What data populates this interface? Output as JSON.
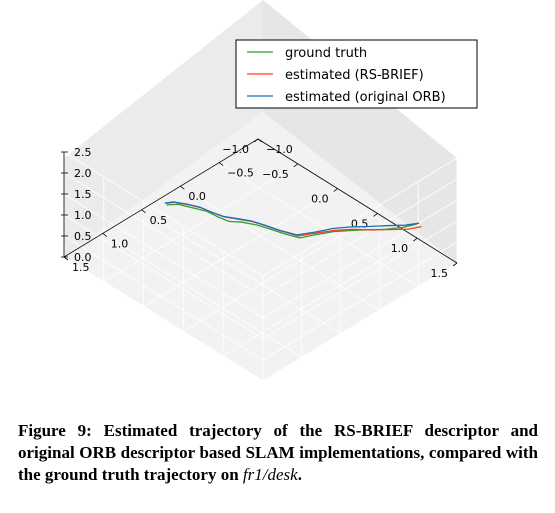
{
  "chart_data": {
    "type": "line",
    "projection": "3d",
    "title": "",
    "xlabel": "",
    "ylabel": "",
    "zlabel": "",
    "grid": true,
    "legend_placement": "top-right",
    "axes": {
      "x": {
        "range": [
          -1.0,
          1.5
        ],
        "ticks": [
          "−1.0",
          "−0.5",
          "0.0",
          "0.5",
          "1.0",
          "1.5"
        ]
      },
      "y": {
        "range": [
          -1.0,
          1.5
        ],
        "ticks": [
          "−1.0",
          "−0.5",
          "0.0",
          "0.5",
          "1.0",
          "1.5"
        ]
      },
      "z": {
        "range": [
          0.0,
          2.5
        ],
        "ticks": [
          "0.0",
          "0.5",
          "1.0",
          "1.5",
          "2.0",
          "2.5"
        ]
      }
    },
    "series": [
      {
        "name": "ground truth",
        "color": "#2ca02c",
        "points": [
          [
            -0.21,
            0.99,
            1.6
          ],
          [
            -0.12,
            0.93,
            1.65
          ],
          [
            0.0,
            0.88,
            1.66
          ],
          [
            0.13,
            0.82,
            1.66
          ],
          [
            0.26,
            0.81,
            1.67
          ],
          [
            0.38,
            0.79,
            1.68
          ],
          [
            0.48,
            0.72,
            1.7
          ],
          [
            0.6,
            0.66,
            1.71
          ],
          [
            0.71,
            0.61,
            1.69
          ],
          [
            0.85,
            0.56,
            1.68
          ],
          [
            0.99,
            0.5,
            1.68
          ],
          [
            1.07,
            0.37,
            1.71
          ],
          [
            1.16,
            0.24,
            1.74
          ],
          [
            1.26,
            0.12,
            1.75
          ],
          [
            1.36,
            -0.01,
            1.74
          ],
          [
            1.45,
            -0.13,
            1.72
          ],
          [
            1.52,
            -0.28,
            1.68
          ],
          [
            1.56,
            -0.42,
            1.65
          ]
        ]
      },
      {
        "name": "estimated (RS-BRIEF)",
        "color": "#ff3b1f",
        "points": [
          [
            -0.23,
            0.98,
            1.6
          ],
          [
            -0.17,
            0.93,
            1.64
          ],
          [
            -0.06,
            0.87,
            1.65
          ],
          [
            0.06,
            0.82,
            1.66
          ],
          [
            0.17,
            0.8,
            1.66
          ],
          [
            0.3,
            0.77,
            1.67
          ],
          [
            0.42,
            0.71,
            1.69
          ],
          [
            0.53,
            0.65,
            1.7
          ],
          [
            0.64,
            0.6,
            1.68
          ],
          [
            0.79,
            0.55,
            1.67
          ],
          [
            0.95,
            0.48,
            1.66
          ],
          [
            1.05,
            0.34,
            1.69
          ],
          [
            1.14,
            0.21,
            1.71
          ],
          [
            1.25,
            0.08,
            1.72
          ],
          [
            1.36,
            -0.04,
            1.7
          ],
          [
            1.46,
            -0.17,
            1.68
          ],
          [
            1.55,
            -0.32,
            1.63
          ],
          [
            1.59,
            -0.45,
            1.59
          ]
        ]
      },
      {
        "name": "estimated (original ORB)",
        "color": "#1f6fb4",
        "points": [
          [
            -0.24,
            0.98,
            1.6
          ],
          [
            -0.18,
            0.93,
            1.64
          ],
          [
            -0.07,
            0.87,
            1.65
          ],
          [
            0.05,
            0.82,
            1.66
          ],
          [
            0.16,
            0.8,
            1.66
          ],
          [
            0.29,
            0.77,
            1.67
          ],
          [
            0.41,
            0.71,
            1.69
          ],
          [
            0.52,
            0.65,
            1.7
          ],
          [
            0.63,
            0.6,
            1.68
          ],
          [
            0.78,
            0.55,
            1.67
          ],
          [
            0.93,
            0.48,
            1.66
          ],
          [
            1.03,
            0.34,
            1.69
          ],
          [
            1.11,
            0.2,
            1.71
          ],
          [
            1.21,
            0.07,
            1.72
          ],
          [
            1.31,
            -0.06,
            1.7
          ],
          [
            1.4,
            -0.19,
            1.68
          ],
          [
            1.49,
            -0.34,
            1.63
          ],
          [
            1.54,
            -0.47,
            1.59
          ]
        ]
      }
    ]
  },
  "caption": {
    "text": "Figure 9: Estimated trajectory of the RS-BRIEF descriptor and original ORB descriptor based SLAM implementations, compared with the ground truth trajectory on ",
    "math": "fr1/desk",
    "end": "."
  }
}
